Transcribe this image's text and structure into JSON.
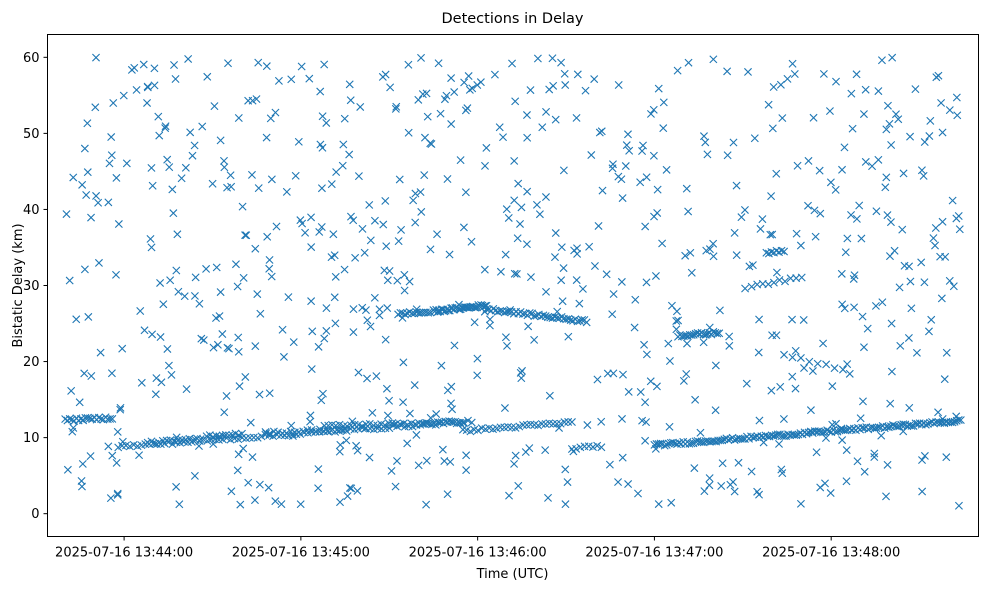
{
  "chart_data": {
    "type": "scatter",
    "title": "Detections in Delay",
    "xlabel": "Time (UTC)",
    "ylabel": "Bistatic Delay (km)",
    "x_axis": {
      "kind": "datetime",
      "min": "2025-07-16 13:43:34",
      "max": "2025-07-16 13:48:50",
      "ticks": [
        {
          "value": "2025-07-16 13:44:00",
          "label": "2025-07-16 13:44:00"
        },
        {
          "value": "2025-07-16 13:45:00",
          "label": "2025-07-16 13:45:00"
        },
        {
          "value": "2025-07-16 13:46:00",
          "label": "2025-07-16 13:46:00"
        },
        {
          "value": "2025-07-16 13:47:00",
          "label": "2025-07-16 13:47:00"
        },
        {
          "value": "2025-07-16 13:48:00",
          "label": "2025-07-16 13:48:00"
        }
      ]
    },
    "y_axis": {
      "min": -3,
      "max": 63,
      "ticks": [
        0,
        10,
        20,
        30,
        40,
        50,
        60
      ]
    },
    "grid": false,
    "legend": "none",
    "marker": "x",
    "color": "#1f77b4",
    "tracks": [
      {
        "x": [
          "2025-07-16 13:43:40",
          "2025-07-16 13:43:56"
        ],
        "y": [
          12.3,
          12.6
        ],
        "count": 22
      },
      {
        "x": [
          "2025-07-16 13:43:58",
          "2025-07-16 13:45:55"
        ],
        "y": [
          8.8,
          12.1
        ],
        "count": 90
      },
      {
        "x": [
          "2025-07-16 13:44:08",
          "2025-07-16 13:44:26"
        ],
        "y": [
          9.3,
          9.8
        ],
        "count": 15
      },
      {
        "x": [
          "2025-07-16 13:44:28",
          "2025-07-16 13:44:40"
        ],
        "y": [
          10.2,
          10.5
        ],
        "count": 12
      },
      {
        "x": [
          "2025-07-16 13:44:48",
          "2025-07-16 13:45:15"
        ],
        "y": [
          10.6,
          11.1
        ],
        "count": 20
      },
      {
        "x": [
          "2025-07-16 13:45:08",
          "2025-07-16 13:45:58"
        ],
        "y": [
          11.5,
          12.1
        ],
        "count": 40
      },
      {
        "x": [
          "2025-07-16 13:45:55",
          "2025-07-16 13:46:32"
        ],
        "y": [
          10.9,
          12.0
        ],
        "count": 30
      },
      {
        "x": [
          "2025-07-16 13:46:32",
          "2025-07-16 13:46:42"
        ],
        "y": [
          8.6,
          8.9
        ],
        "count": 8
      },
      {
        "x": [
          "2025-07-16 13:47:00",
          "2025-07-16 13:48:44"
        ],
        "y": [
          9.0,
          12.2
        ],
        "count": 150
      },
      {
        "x": [
          "2025-07-16 13:45:33",
          "2025-07-16 13:45:44"
        ],
        "y": [
          26.3,
          26.5
        ],
        "count": 15
      },
      {
        "x": [
          "2025-07-16 13:45:45",
          "2025-07-16 13:46:03"
        ],
        "y": [
          26.6,
          27.4
        ],
        "count": 40
      },
      {
        "x": [
          "2025-07-16 13:46:03",
          "2025-07-16 13:46:37"
        ],
        "y": [
          26.9,
          25.3
        ],
        "count": 45
      },
      {
        "x": [
          "2025-07-16 13:47:08",
          "2025-07-16 13:47:22"
        ],
        "y": [
          23.4,
          23.8
        ],
        "count": 22
      },
      {
        "x": [
          "2025-07-16 13:47:33",
          "2025-07-16 13:47:50"
        ],
        "y": [
          30.0,
          31.0
        ],
        "count": 10
      },
      {
        "x": [
          "2025-07-16 13:47:38",
          "2025-07-16 13:47:44"
        ],
        "y": [
          34.3,
          34.6
        ],
        "count": 8
      },
      {
        "x": [
          "2025-07-16 13:47:44",
          "2025-07-16 13:48:04"
        ],
        "y": [
          21.0,
          19.0
        ],
        "count": 8
      }
    ],
    "clutter": {
      "x_range": [
        "2025-07-16 13:43:40",
        "2025-07-16 13:48:44"
      ],
      "y_range": [
        1,
        60
      ],
      "count": 760
    }
  }
}
